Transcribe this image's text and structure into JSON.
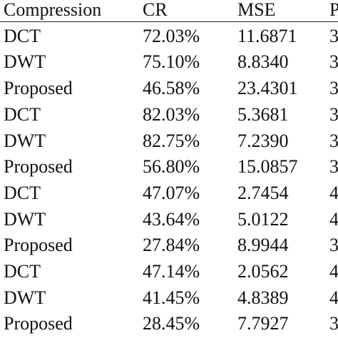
{
  "table": {
    "header": [
      "Compression",
      "CR",
      "MSE",
      "P"
    ],
    "rows": [
      [
        "DCT",
        "72.03%",
        "11.6871",
        "3"
      ],
      [
        "DWT",
        "75.10%",
        "8.8340",
        "3"
      ],
      [
        "Proposed",
        "46.58%",
        "23.4301",
        "3"
      ],
      [
        "DCT",
        "82.03%",
        "5.3681",
        "3"
      ],
      [
        "DWT",
        "82.75%",
        "7.2390",
        "3"
      ],
      [
        "Proposed",
        "56.80%",
        "15.0857",
        "3"
      ],
      [
        "DCT",
        "47.07%",
        "2.7454",
        "4"
      ],
      [
        "DWT",
        "43.64%",
        "5.0122",
        "4"
      ],
      [
        "Proposed",
        "27.84%",
        "8.9944",
        "3"
      ],
      [
        "DCT",
        "47.14%",
        "2.0562",
        "4"
      ],
      [
        "DWT",
        "41.45%",
        "4.8389",
        "4"
      ],
      [
        "Proposed",
        "28.45%",
        "7.7927",
        "3"
      ]
    ]
  }
}
